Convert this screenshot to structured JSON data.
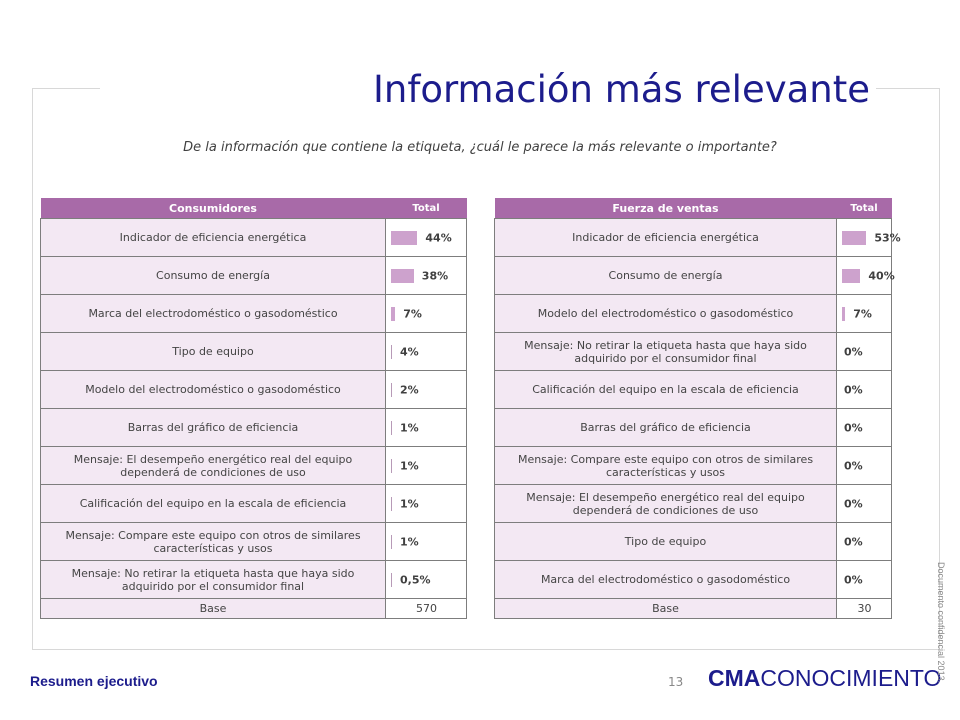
{
  "title": "Información más relevante",
  "question": "De la información que contiene la etiqueta, ¿cuál le parece la más relevante o importante?",
  "colors": {
    "title": "#1c1c8c",
    "header": "#a86aa8",
    "bar": "#cda2cd",
    "row": "#f3e8f3"
  },
  "consumidores": {
    "header": "Consumidores",
    "total_label": "Total",
    "rows": [
      {
        "label": "Indicador de eficiencia energética",
        "value": "44%",
        "pct": 44
      },
      {
        "label": "Consumo de energía",
        "value": "38%",
        "pct": 38
      },
      {
        "label": "Marca del electrodoméstico o gasodoméstico",
        "value": "7%",
        "pct": 7
      },
      {
        "label": "Tipo de equipo",
        "value": "4%",
        "pct": 4
      },
      {
        "label": "Modelo del electrodoméstico o gasodoméstico",
        "value": "2%",
        "pct": 2
      },
      {
        "label": "Barras del gráfico de eficiencia",
        "value": "1%",
        "pct": 1
      },
      {
        "label": "Mensaje: El desempeño energético real del equipo dependerá de condiciones de uso",
        "value": "1%",
        "pct": 1
      },
      {
        "label": "Calificación del equipo en la escala de eficiencia",
        "value": "1%",
        "pct": 1
      },
      {
        "label": "Mensaje: Compare este equipo con otros de similares características y usos",
        "value": "1%",
        "pct": 1
      },
      {
        "label": "Mensaje: No retirar la etiqueta hasta que haya sido adquirido por el consumidor final",
        "value": "0,5%",
        "pct": 0.5
      }
    ],
    "base_label": "Base",
    "base_value": "570"
  },
  "fuerza": {
    "header": "Fuerza de ventas",
    "total_label": "Total",
    "rows": [
      {
        "label": "Indicador de eficiencia energética",
        "value": "53%",
        "pct": 53
      },
      {
        "label": "Consumo de energía",
        "value": "40%",
        "pct": 40
      },
      {
        "label": "Modelo del electrodoméstico o gasodoméstico",
        "value": "7%",
        "pct": 7
      },
      {
        "label": "Mensaje: No retirar la etiqueta hasta que haya sido adquirido por el consumidor final",
        "value": "0%",
        "pct": 0
      },
      {
        "label": "Calificación del equipo en la escala de eficiencia",
        "value": "0%",
        "pct": 0
      },
      {
        "label": "Barras del gráfico de eficiencia",
        "value": "0%",
        "pct": 0
      },
      {
        "label": "Mensaje: Compare este equipo con otros de similares características y usos",
        "value": "0%",
        "pct": 0
      },
      {
        "label": "Mensaje: El desempeño energético real del equipo dependerá de condiciones de uso",
        "value": "0%",
        "pct": 0
      },
      {
        "label": "Tipo de equipo",
        "value": "0%",
        "pct": 0
      },
      {
        "label": "Marca del electrodoméstico o gasodoméstico",
        "value": "0%",
        "pct": 0
      }
    ],
    "base_label": "Base",
    "base_value": "30"
  },
  "footer": {
    "section": "Resumen ejecutivo",
    "page": "13",
    "logo_bold": "CMA",
    "logo_rest": "CONOCIMIENTO",
    "confidential": "Documento confidencial 2013."
  }
}
